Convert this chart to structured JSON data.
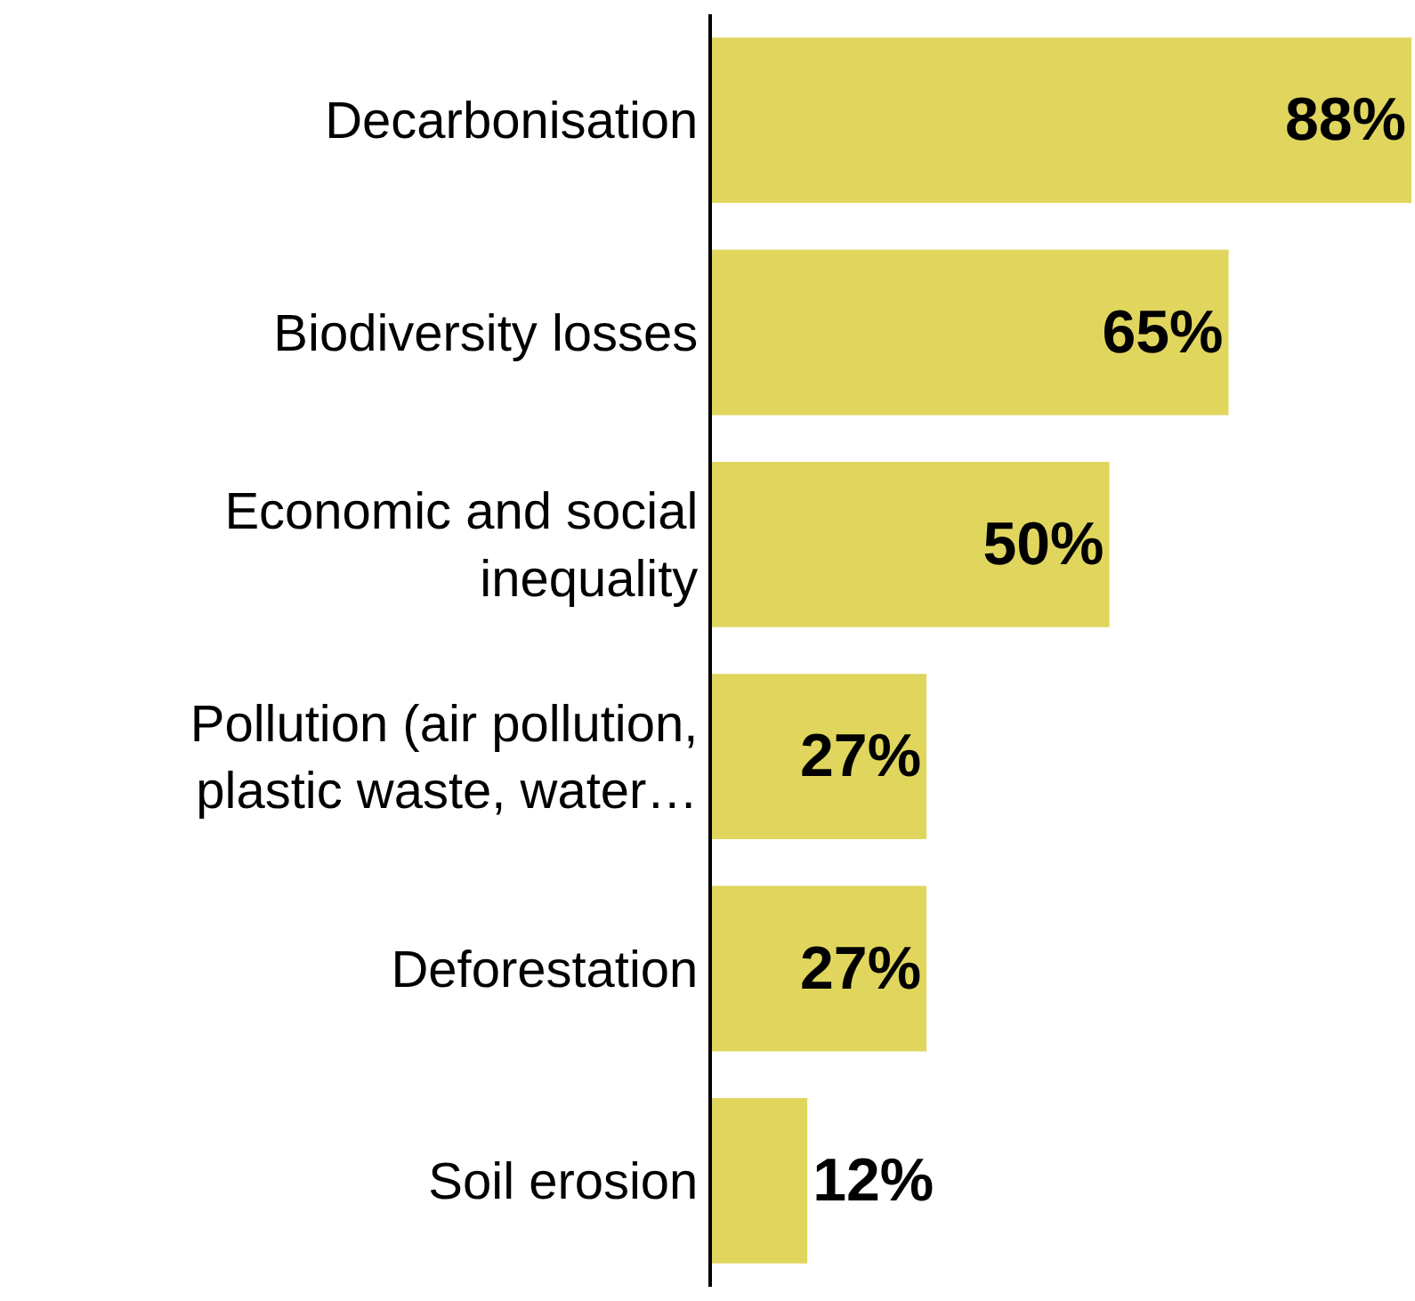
{
  "chart_data": {
    "type": "bar",
    "orientation": "horizontal",
    "categories": [
      "Decarbonisation",
      "Biodiversity losses",
      "Economic and social inequality",
      "Pollution (air pollution, plastic waste, water…",
      "Deforestation",
      "Soil erosion"
    ],
    "values": [
      88,
      65,
      50,
      27,
      27,
      12
    ],
    "value_labels": [
      "88%",
      "65%",
      "50%",
      "27%",
      "27%",
      "12%"
    ],
    "color": "#e0d65e",
    "xlim": [
      0,
      88
    ]
  }
}
